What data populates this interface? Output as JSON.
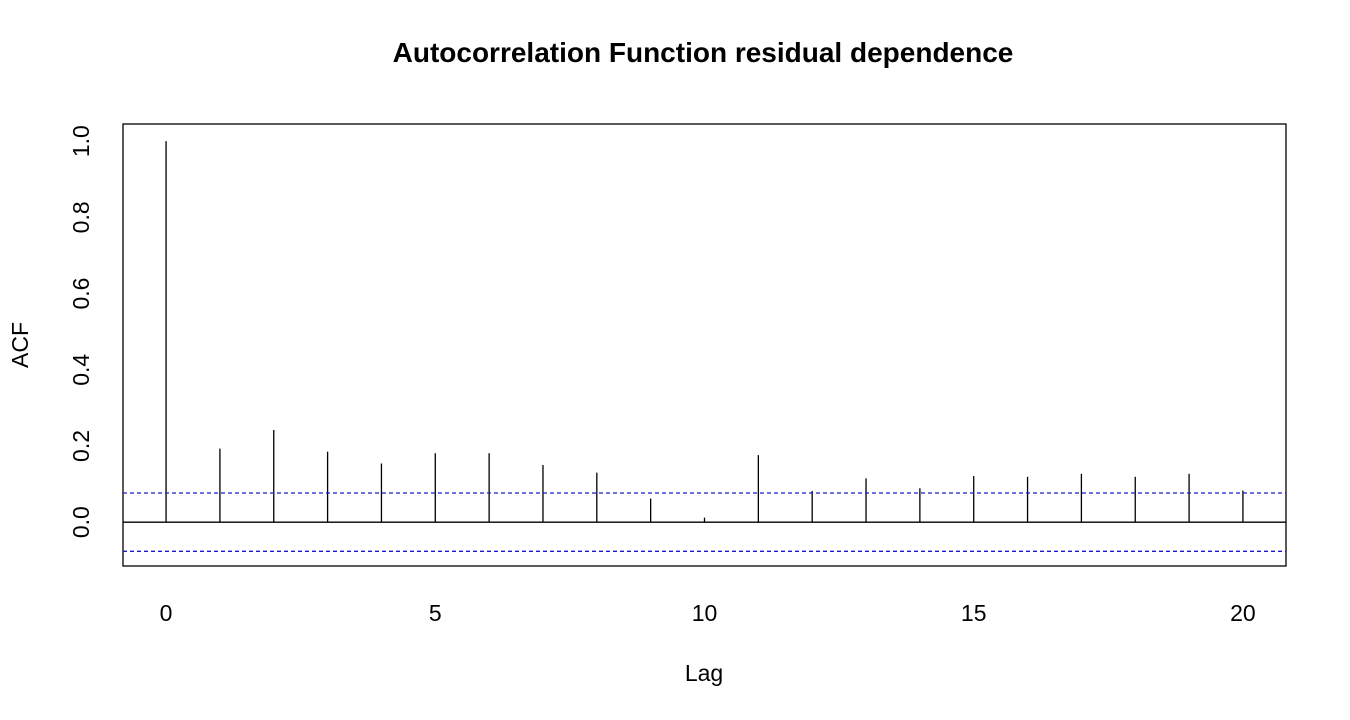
{
  "chart_data": {
    "type": "bar",
    "title": "Autocorrelation Function residual dependence",
    "xlabel": "Lag",
    "ylabel": "ACF",
    "x": [
      0,
      1,
      2,
      3,
      4,
      5,
      6,
      7,
      8,
      9,
      10,
      11,
      12,
      13,
      14,
      15,
      16,
      17,
      18,
      19,
      20
    ],
    "values": [
      1.0,
      0.193,
      0.242,
      0.185,
      0.154,
      0.181,
      0.181,
      0.15,
      0.13,
      0.062,
      0.012,
      0.176,
      0.082,
      0.115,
      0.089,
      0.121,
      0.119,
      0.127,
      0.119,
      0.127,
      0.083
    ],
    "confidence_bounds": [
      0.0765,
      -0.0765
    ],
    "zero_line": 0,
    "xlim": [
      -0.8,
      20.8
    ],
    "ylim": [
      -0.115,
      1.045
    ],
    "x_ticks": [
      0,
      5,
      10,
      15,
      20
    ],
    "x_tick_labels": [
      "0",
      "5",
      "10",
      "15",
      "20"
    ],
    "y_ticks": [
      0.0,
      0.2,
      0.4,
      0.6,
      0.8,
      1.0
    ],
    "y_tick_labels": [
      "0.0",
      "0.2",
      "0.4",
      "0.6",
      "0.8",
      "1.0"
    ],
    "grid": false,
    "colors": {
      "bars": "#000000",
      "confidence_lines": "#1a1acc",
      "axes": "#000000"
    }
  }
}
